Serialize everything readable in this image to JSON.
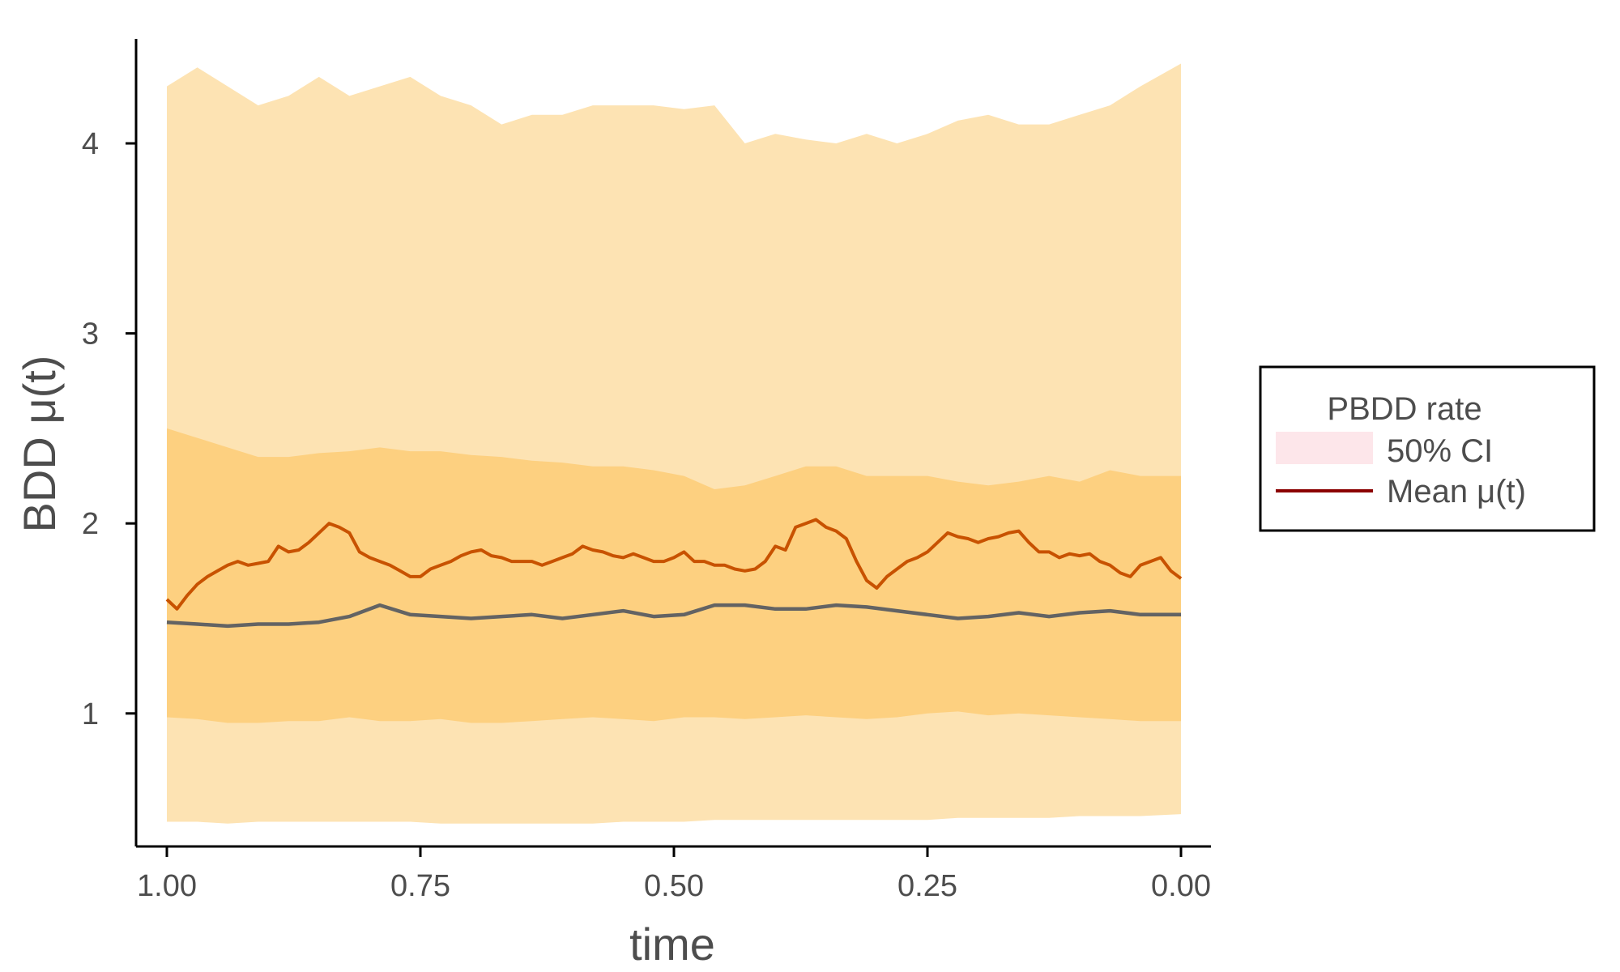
{
  "chart_data": {
    "type": "area",
    "xlabel": "time",
    "ylabel": "BDD μ(t)",
    "xlim": [
      1.0,
      0.0
    ],
    "x_reversed": true,
    "ylim": [
      0.3,
      4.55
    ],
    "x_ticks": [
      1.0,
      0.75,
      0.5,
      0.25,
      0.0
    ],
    "x_tick_labels": [
      "1.00",
      "0.75",
      "0.50",
      "0.25",
      "0.00"
    ],
    "y_ticks": [
      1,
      2,
      3,
      4
    ],
    "y_tick_labels": [
      "1",
      "2",
      "3",
      "4"
    ],
    "grid": false,
    "legend": {
      "title": "PBDD rate",
      "placement": "right",
      "entries": [
        {
          "label": "50% CI",
          "kind": "fill",
          "color": "#fde6ea"
        },
        {
          "label": "Mean μ(t)",
          "kind": "line",
          "color": "#8b0000"
        }
      ]
    },
    "series": [
      {
        "role": "outer-band",
        "color": "#fde3b3",
        "x": [
          1.0,
          0.97,
          0.94,
          0.91,
          0.88,
          0.85,
          0.82,
          0.79,
          0.76,
          0.73,
          0.7,
          0.67,
          0.64,
          0.61,
          0.58,
          0.55,
          0.52,
          0.49,
          0.46,
          0.43,
          0.4,
          0.37,
          0.34,
          0.31,
          0.28,
          0.25,
          0.22,
          0.19,
          0.16,
          0.13,
          0.1,
          0.07,
          0.04,
          0.0
        ],
        "upper": [
          4.3,
          4.4,
          4.3,
          4.2,
          4.25,
          4.35,
          4.25,
          4.3,
          4.35,
          4.25,
          4.2,
          4.1,
          4.15,
          4.15,
          4.2,
          4.2,
          4.2,
          4.18,
          4.2,
          4.0,
          4.05,
          4.02,
          4.0,
          4.05,
          4.0,
          4.05,
          4.12,
          4.15,
          4.1,
          4.1,
          4.15,
          4.2,
          4.3,
          4.42
        ],
        "lower": [
          0.43,
          0.43,
          0.42,
          0.43,
          0.43,
          0.43,
          0.43,
          0.43,
          0.43,
          0.42,
          0.42,
          0.42,
          0.42,
          0.42,
          0.42,
          0.43,
          0.43,
          0.43,
          0.44,
          0.44,
          0.44,
          0.44,
          0.44,
          0.44,
          0.44,
          0.44,
          0.45,
          0.45,
          0.45,
          0.45,
          0.46,
          0.46,
          0.46,
          0.47
        ]
      },
      {
        "role": "inner-band",
        "color": "#fdd080",
        "x": [
          1.0,
          0.97,
          0.94,
          0.91,
          0.88,
          0.85,
          0.82,
          0.79,
          0.76,
          0.73,
          0.7,
          0.67,
          0.64,
          0.61,
          0.58,
          0.55,
          0.52,
          0.49,
          0.46,
          0.43,
          0.4,
          0.37,
          0.34,
          0.31,
          0.28,
          0.25,
          0.22,
          0.19,
          0.16,
          0.13,
          0.1,
          0.07,
          0.04,
          0.0
        ],
        "upper": [
          2.5,
          2.45,
          2.4,
          2.35,
          2.35,
          2.37,
          2.38,
          2.4,
          2.38,
          2.38,
          2.36,
          2.35,
          2.33,
          2.32,
          2.3,
          2.3,
          2.28,
          2.25,
          2.18,
          2.2,
          2.25,
          2.3,
          2.3,
          2.25,
          2.25,
          2.25,
          2.22,
          2.2,
          2.22,
          2.25,
          2.22,
          2.28,
          2.25,
          2.25
        ],
        "lower": [
          0.98,
          0.97,
          0.95,
          0.95,
          0.96,
          0.96,
          0.98,
          0.96,
          0.96,
          0.97,
          0.95,
          0.95,
          0.96,
          0.97,
          0.98,
          0.97,
          0.96,
          0.98,
          0.98,
          0.97,
          0.98,
          0.99,
          0.98,
          0.97,
          0.98,
          1.0,
          1.01,
          0.99,
          1.0,
          0.99,
          0.98,
          0.97,
          0.96,
          0.96
        ]
      },
      {
        "name": "Mean μ(t)",
        "role": "mean-line",
        "color": "#c85200",
        "x": [
          1.0,
          0.99,
          0.98,
          0.97,
          0.96,
          0.95,
          0.94,
          0.93,
          0.92,
          0.91,
          0.9,
          0.89,
          0.88,
          0.87,
          0.86,
          0.85,
          0.84,
          0.83,
          0.82,
          0.81,
          0.8,
          0.79,
          0.78,
          0.77,
          0.76,
          0.75,
          0.74,
          0.73,
          0.72,
          0.71,
          0.7,
          0.69,
          0.68,
          0.67,
          0.66,
          0.65,
          0.64,
          0.63,
          0.62,
          0.61,
          0.6,
          0.59,
          0.58,
          0.57,
          0.56,
          0.55,
          0.54,
          0.53,
          0.52,
          0.51,
          0.5,
          0.49,
          0.48,
          0.47,
          0.46,
          0.45,
          0.44,
          0.43,
          0.42,
          0.41,
          0.4,
          0.39,
          0.38,
          0.37,
          0.36,
          0.35,
          0.34,
          0.33,
          0.32,
          0.31,
          0.3,
          0.29,
          0.28,
          0.27,
          0.26,
          0.25,
          0.24,
          0.23,
          0.22,
          0.21,
          0.2,
          0.19,
          0.18,
          0.17,
          0.16,
          0.15,
          0.14,
          0.13,
          0.12,
          0.11,
          0.1,
          0.09,
          0.08,
          0.07,
          0.06,
          0.05,
          0.04,
          0.03,
          0.02,
          0.01,
          0.0
        ],
        "y": [
          1.6,
          1.55,
          1.62,
          1.68,
          1.72,
          1.75,
          1.78,
          1.8,
          1.78,
          1.79,
          1.8,
          1.88,
          1.85,
          1.86,
          1.9,
          1.95,
          2.0,
          1.98,
          1.95,
          1.85,
          1.82,
          1.8,
          1.78,
          1.75,
          1.72,
          1.72,
          1.76,
          1.78,
          1.8,
          1.83,
          1.85,
          1.86,
          1.83,
          1.82,
          1.8,
          1.8,
          1.8,
          1.78,
          1.8,
          1.82,
          1.84,
          1.88,
          1.86,
          1.85,
          1.83,
          1.82,
          1.84,
          1.82,
          1.8,
          1.8,
          1.82,
          1.85,
          1.8,
          1.8,
          1.78,
          1.78,
          1.76,
          1.75,
          1.76,
          1.8,
          1.88,
          1.86,
          1.98,
          2.0,
          2.02,
          1.98,
          1.96,
          1.92,
          1.8,
          1.7,
          1.66,
          1.72,
          1.76,
          1.8,
          1.82,
          1.85,
          1.9,
          1.95,
          1.93,
          1.92,
          1.9,
          1.92,
          1.93,
          1.95,
          1.96,
          1.9,
          1.85,
          1.85,
          1.82,
          1.84,
          1.83,
          1.84,
          1.8,
          1.78,
          1.74,
          1.72,
          1.78,
          1.8,
          1.82,
          1.75,
          1.71
        ]
      },
      {
        "role": "gray-line",
        "color": "#636363",
        "x": [
          1.0,
          0.97,
          0.94,
          0.91,
          0.88,
          0.85,
          0.82,
          0.79,
          0.76,
          0.73,
          0.7,
          0.67,
          0.64,
          0.61,
          0.58,
          0.55,
          0.52,
          0.49,
          0.46,
          0.43,
          0.4,
          0.37,
          0.34,
          0.31,
          0.28,
          0.25,
          0.22,
          0.19,
          0.16,
          0.13,
          0.1,
          0.07,
          0.04,
          0.0
        ],
        "y": [
          1.48,
          1.47,
          1.46,
          1.47,
          1.47,
          1.48,
          1.51,
          1.57,
          1.52,
          1.51,
          1.5,
          1.51,
          1.52,
          1.5,
          1.52,
          1.54,
          1.51,
          1.52,
          1.57,
          1.57,
          1.55,
          1.55,
          1.57,
          1.56,
          1.54,
          1.52,
          1.5,
          1.51,
          1.53,
          1.51,
          1.53,
          1.54,
          1.52,
          1.52
        ]
      }
    ]
  }
}
